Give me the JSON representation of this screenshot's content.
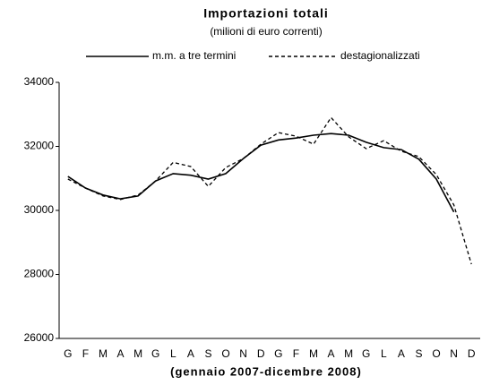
{
  "chart_data": {
    "type": "line",
    "title": "Importazioni totali",
    "subtitle": "(milioni di euro correnti)",
    "x_label": "(gennaio 2007-dicembre 2008)",
    "categories": [
      "G",
      "F",
      "M",
      "A",
      "M",
      "G",
      "L",
      "A",
      "S",
      "O",
      "N",
      "D",
      "G",
      "F",
      "M",
      "A",
      "M",
      "G",
      "L",
      "A",
      "S",
      "O",
      "N",
      "D"
    ],
    "series": [
      {
        "name": "m.m. a tre termini",
        "color": "#000000",
        "dash": "solid",
        "values": [
          31060,
          30700,
          30480,
          30360,
          30450,
          30920,
          31150,
          31100,
          30980,
          31150,
          31620,
          32040,
          32200,
          32260,
          32350,
          32400,
          32350,
          32130,
          31960,
          31900,
          31600,
          30980,
          29950,
          null
        ]
      },
      {
        "name": "destagionalizzati",
        "color": "#000000",
        "dash": "dashed",
        "values": [
          30980,
          30700,
          30450,
          30340,
          30480,
          30920,
          31500,
          31370,
          30750,
          31340,
          31620,
          32070,
          32430,
          32320,
          32070,
          32900,
          32300,
          31930,
          32180,
          31850,
          31680,
          31120,
          30170,
          28320
        ]
      }
    ],
    "ylim": [
      26000,
      34000
    ],
    "yticks": [
      26000,
      28000,
      30000,
      32000,
      34000
    ],
    "grid": false,
    "legend": "top"
  }
}
